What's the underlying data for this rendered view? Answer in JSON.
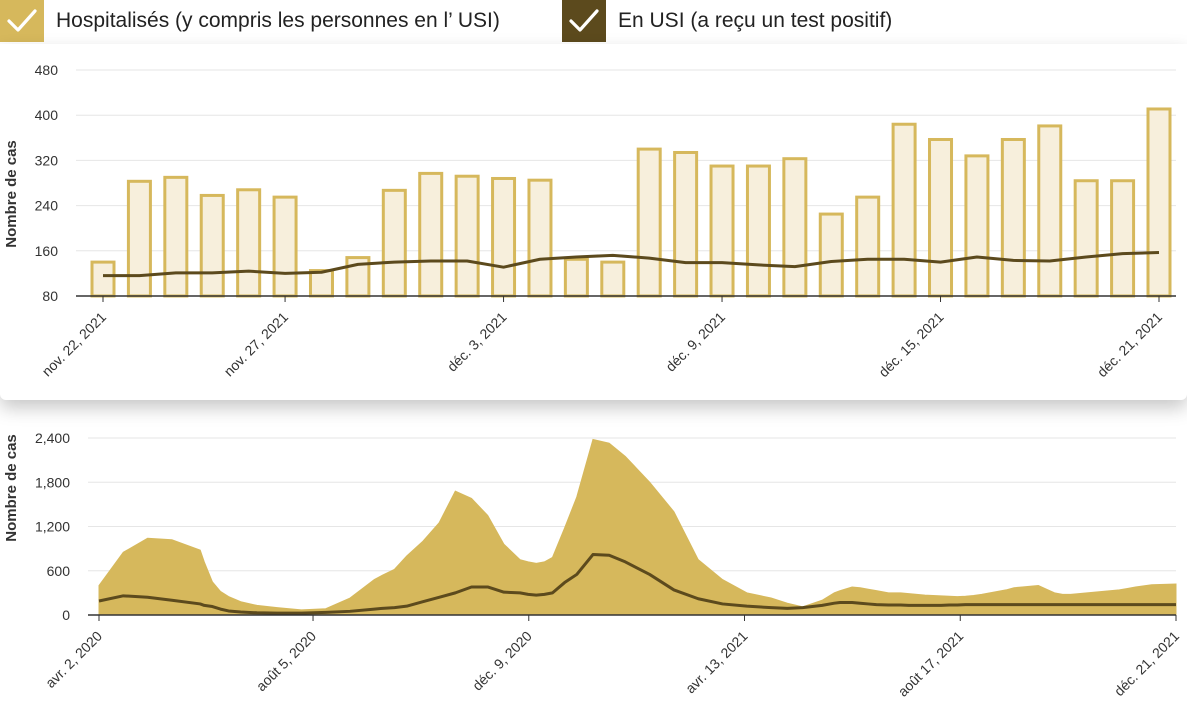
{
  "legend": {
    "hospitalized": {
      "label": "Hospitalisés (y compris les personnes en l’ USI)",
      "color": "#d6b85c",
      "checked": true
    },
    "icu": {
      "label": "En USI (a reçu un test positif)",
      "color": "#5c4a1d",
      "checked": true
    }
  },
  "colors": {
    "bar_fill": "#f7efdc",
    "bar_stroke": "#d6b85c",
    "icu_line": "#5c4a1d",
    "area_fill": "#d6b85c",
    "grid": "#e6e6e6",
    "axis": "#333333"
  },
  "chart_data": [
    {
      "type": "bar",
      "id": "recent",
      "ylabel": "Nombre de cas",
      "ylim": [
        80,
        480
      ],
      "yticks": [
        80,
        160,
        240,
        320,
        400,
        480
      ],
      "ytick_labels": [
        "80",
        "160",
        "240",
        "320",
        "400",
        "480"
      ],
      "categories": [
        "nov. 22, 2021",
        "nov. 23, 2021",
        "nov. 24, 2021",
        "nov. 25, 2021",
        "nov. 26, 2021",
        "nov. 27, 2021",
        "nov. 28, 2021",
        "nov. 29, 2021",
        "nov. 30, 2021",
        "déc. 1, 2021",
        "déc. 2, 2021",
        "déc. 3, 2021",
        "déc. 4, 2021",
        "déc. 5, 2021",
        "déc. 6, 2021",
        "déc. 7, 2021",
        "déc. 8, 2021",
        "déc. 9, 2021",
        "déc. 10, 2021",
        "déc. 11, 2021",
        "déc. 12, 2021",
        "déc. 13, 2021",
        "déc. 14, 2021",
        "déc. 15, 2021",
        "déc. 16, 2021",
        "déc. 17, 2021",
        "déc. 18, 2021",
        "déc. 19, 2021",
        "déc. 20, 2021",
        "déc. 21, 2021"
      ],
      "xtick_labels": [
        "nov. 22, 2021",
        "",
        "",
        "",
        "",
        "nov. 27, 2021",
        "",
        "",
        "",
        "",
        "",
        "déc. 3, 2021",
        "",
        "",
        "",
        "",
        "",
        "déc. 9, 2021",
        "",
        "",
        "",
        "",
        "",
        "déc. 15, 2021",
        "",
        "",
        "",
        "",
        "",
        "déc. 21, 2021"
      ],
      "series": [
        {
          "name": "Hospitalisés (y compris les personnes en l’ USI)",
          "values": [
            140,
            283,
            290,
            258,
            268,
            255,
            125,
            148,
            267,
            297,
            292,
            288,
            285,
            145,
            140,
            340,
            334,
            310,
            310,
            323,
            225,
            255,
            384,
            357,
            328,
            357,
            381,
            284,
            284,
            411
          ]
        },
        {
          "name": "En USI (a reçu un test positif)",
          "values": [
            116,
            116,
            121,
            121,
            124,
            120,
            122,
            136,
            140,
            142,
            142,
            131,
            145,
            149,
            152,
            147,
            139,
            139,
            135,
            132,
            141,
            145,
            145,
            140,
            149,
            143,
            142,
            149,
            155,
            157
          ]
        }
      ]
    },
    {
      "type": "area",
      "id": "overall",
      "ylabel": "Nombre de cas",
      "ylim": [
        0,
        2400
      ],
      "yticks": [
        0,
        600,
        1200,
        1800,
        2400
      ],
      "ytick_labels": [
        "0",
        "600",
        "1,200",
        "1,800",
        "2,400"
      ],
      "xtick_labels": [
        "avr. 2, 2020",
        "août 5, 2020",
        "déc. 9, 2020",
        "avr. 13, 2021",
        "août 17, 2021",
        "déc. 21, 2021"
      ],
      "x_days": [
        0,
        30,
        60,
        90,
        125,
        130,
        140,
        150,
        160,
        175,
        195,
        220,
        250,
        280,
        310,
        340,
        350,
        365,
        380,
        400,
        420,
        440,
        460,
        480,
        500,
        520,
        530,
        540,
        550,
        560,
        575,
        590,
        610,
        630,
        650,
        680,
        710,
        740,
        770,
        800,
        830,
        850,
        869,
        893,
        908,
        915,
        930,
        940,
        950,
        960,
        975,
        990,
        1000,
        1010,
        1020,
        1030,
        1040,
        1050,
        1060,
        1070,
        1080,
        1090,
        1100,
        1110,
        1120,
        1130,
        1140,
        1150,
        1160,
        1170,
        1180,
        1190,
        1200,
        1210,
        1220,
        1230,
        1240,
        1250,
        1260,
        1270,
        1280,
        1290,
        1300,
        1330
      ],
      "series": [
        {
          "name": "Hospitalisés (y compris les personnes en l’ USI)",
          "values": [
            400,
            850,
            1040,
            1020,
            880,
            720,
            450,
            320,
            250,
            180,
            130,
            100,
            70,
            85,
            230,
            480,
            540,
            620,
            800,
            1000,
            1250,
            1680,
            1580,
            1350,
            960,
            750,
            720,
            700,
            720,
            780,
            1180,
            1600,
            2380,
            2330,
            2150,
            1800,
            1400,
            750,
            480,
            300,
            230,
            160,
            110,
            200,
            300,
            330,
            380,
            370,
            350,
            330,
            300,
            300,
            290,
            280,
            270,
            265,
            260,
            255,
            250,
            255,
            265,
            280,
            300,
            320,
            340,
            370,
            380,
            390,
            400,
            350,
            300,
            280,
            280,
            290,
            300,
            310,
            320,
            330,
            340,
            360,
            380,
            395,
            410,
            420
          ]
        },
        {
          "name": "En USI (a reçu un test positif)",
          "values": [
            190,
            260,
            240,
            200,
            150,
            130,
            115,
            80,
            55,
            40,
            30,
            25,
            25,
            35,
            50,
            80,
            90,
            100,
            120,
            180,
            240,
            300,
            380,
            380,
            310,
            300,
            280,
            270,
            280,
            300,
            440,
            550,
            820,
            810,
            720,
            550,
            340,
            220,
            150,
            120,
            100,
            90,
            100,
            130,
            160,
            170,
            170,
            160,
            150,
            140,
            135,
            135,
            130,
            130,
            130,
            130,
            130,
            135,
            135,
            140,
            140,
            140,
            140,
            140,
            140,
            140,
            140,
            140,
            140,
            140,
            140,
            140,
            140,
            140,
            140,
            140,
            140,
            140,
            140,
            140,
            140,
            140,
            140,
            140
          ]
        }
      ]
    }
  ]
}
